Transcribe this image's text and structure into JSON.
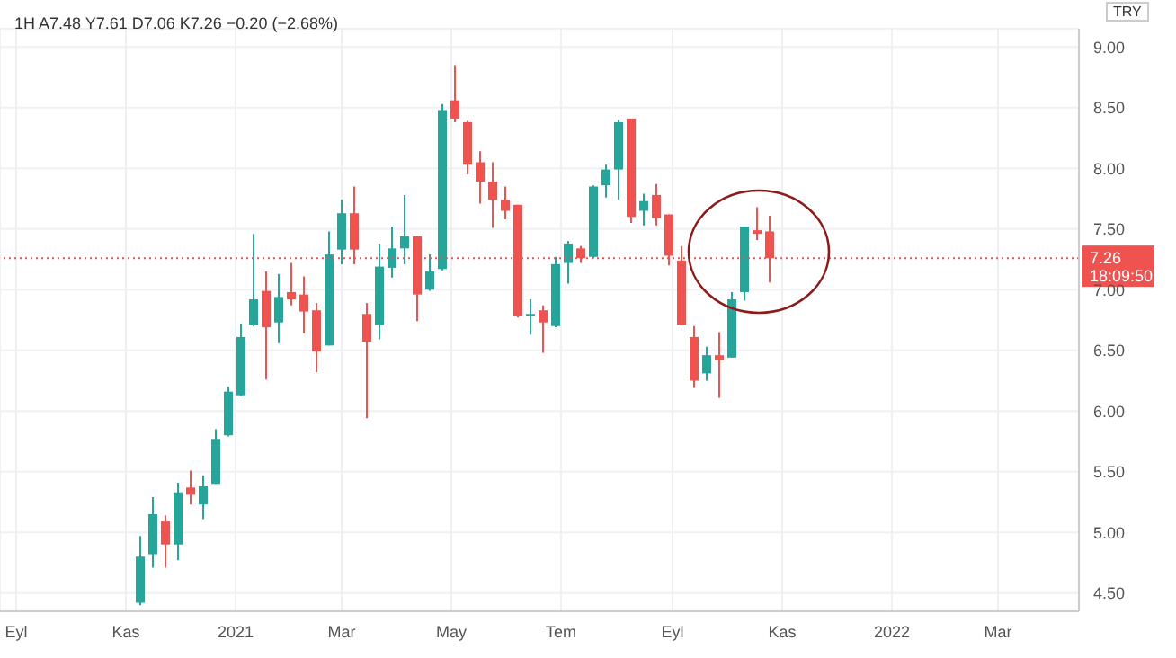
{
  "chart_data": {
    "type": "candlestick",
    "title": "1H  A7.48 Y7.61 D7.06 K7.26 −0.20 (−2.68%)",
    "x": [
      "2020-11-09",
      "2020-11-16",
      "2020-11-23",
      "2020-11-30",
      "2020-12-07",
      "2020-12-14",
      "2020-12-21",
      "2020-12-28",
      "2021-01-04",
      "2021-01-11",
      "2021-01-18",
      "2021-01-25",
      "2021-02-01",
      "2021-02-08",
      "2021-02-15",
      "2021-02-22",
      "2021-03-01",
      "2021-03-08",
      "2021-03-15",
      "2021-03-22",
      "2021-03-29",
      "2021-04-05",
      "2021-04-12",
      "2021-04-19",
      "2021-04-26",
      "2021-05-03",
      "2021-05-10",
      "2021-05-17",
      "2021-05-24",
      "2021-05-31",
      "2021-06-07",
      "2021-06-14",
      "2021-06-21",
      "2021-06-28",
      "2021-07-05",
      "2021-07-12",
      "2021-07-19",
      "2021-07-26",
      "2021-08-02",
      "2021-08-09",
      "2021-08-16",
      "2021-08-23",
      "2021-08-30",
      "2021-09-06",
      "2021-09-13",
      "2021-09-20",
      "2021-09-27",
      "2021-10-04",
      "2021-10-11",
      "2021-10-18",
      "2021-10-25"
    ],
    "ohlc": [
      [
        4.42,
        4.97,
        4.4,
        4.8
      ],
      [
        4.82,
        5.29,
        4.71,
        5.15
      ],
      [
        5.09,
        5.14,
        4.71,
        4.9
      ],
      [
        4.9,
        5.41,
        4.77,
        5.33
      ],
      [
        5.37,
        5.51,
        5.23,
        5.31
      ],
      [
        5.23,
        5.47,
        5.11,
        5.38
      ],
      [
        5.4,
        5.85,
        5.4,
        5.77
      ],
      [
        5.8,
        6.2,
        5.79,
        6.16
      ],
      [
        6.13,
        6.72,
        6.12,
        6.61
      ],
      [
        6.71,
        7.46,
        6.7,
        6.92
      ],
      [
        6.99,
        7.15,
        6.26,
        6.69
      ],
      [
        6.73,
        7.13,
        6.56,
        6.94
      ],
      [
        6.98,
        7.22,
        6.87,
        6.92
      ],
      [
        6.96,
        7.11,
        6.64,
        6.82
      ],
      [
        6.83,
        6.89,
        6.32,
        6.49
      ],
      [
        6.54,
        7.48,
        6.54,
        7.29
      ],
      [
        7.33,
        7.74,
        7.21,
        7.63
      ],
      [
        7.63,
        7.85,
        7.21,
        7.33
      ],
      [
        6.8,
        6.89,
        5.94,
        6.57
      ],
      [
        6.71,
        7.38,
        6.59,
        7.19
      ],
      [
        7.18,
        7.52,
        7.1,
        7.34
      ],
      [
        7.34,
        7.78,
        7.21,
        7.44
      ],
      [
        7.44,
        7.44,
        6.74,
        6.96
      ],
      [
        7.0,
        7.29,
        6.99,
        7.15
      ],
      [
        7.17,
        8.53,
        7.16,
        8.48
      ],
      [
        8.56,
        8.85,
        8.38,
        8.41
      ],
      [
        8.38,
        8.39,
        7.95,
        8.03
      ],
      [
        8.05,
        8.14,
        7.71,
        7.89
      ],
      [
        7.89,
        8.05,
        7.51,
        7.74
      ],
      [
        7.74,
        7.85,
        7.58,
        7.65
      ],
      [
        7.7,
        7.7,
        6.77,
        6.78
      ],
      [
        6.78,
        6.92,
        6.63,
        6.8
      ],
      [
        6.83,
        6.87,
        6.48,
        6.73
      ],
      [
        6.7,
        7.27,
        6.69,
        7.21
      ],
      [
        7.22,
        7.4,
        7.05,
        7.38
      ],
      [
        7.34,
        7.36,
        7.22,
        7.26
      ],
      [
        7.27,
        7.86,
        7.26,
        7.85
      ],
      [
        7.86,
        8.03,
        7.76,
        7.99
      ],
      [
        7.99,
        8.4,
        7.74,
        8.38
      ],
      [
        8.41,
        8.41,
        7.55,
        7.6
      ],
      [
        7.65,
        7.79,
        7.53,
        7.73
      ],
      [
        7.78,
        7.87,
        7.53,
        7.59
      ],
      [
        7.62,
        7.62,
        7.2,
        7.28
      ],
      [
        7.24,
        7.36,
        6.71,
        6.71
      ],
      [
        6.61,
        6.7,
        6.19,
        6.25
      ],
      [
        6.31,
        6.53,
        6.25,
        6.46
      ],
      [
        6.46,
        6.65,
        6.11,
        6.42
      ],
      [
        6.44,
        6.98,
        6.44,
        6.92
      ],
      [
        6.98,
        7.52,
        6.91,
        7.52
      ],
      [
        7.49,
        7.68,
        7.41,
        7.46
      ],
      [
        7.48,
        7.61,
        7.06,
        7.26
      ]
    ],
    "colors": [
      "#26a69a",
      "#26a69a",
      "#ef5350",
      "#26a69a",
      "#ef5350",
      "#26a69a",
      "#26a69a",
      "#26a69a",
      "#26a69a",
      "#26a69a",
      "#ef5350",
      "#26a69a",
      "#ef5350",
      "#ef5350",
      "#ef5350",
      "#26a69a",
      "#26a69a",
      "#ef5350",
      "#ef5350",
      "#26a69a",
      "#26a69a",
      "#26a69a",
      "#ef5350",
      "#26a69a",
      "#26a69a",
      "#ef5350",
      "#ef5350",
      "#ef5350",
      "#ef5350",
      "#ef5350",
      "#ef5350",
      "#26a69a",
      "#ef5350",
      "#26a69a",
      "#26a69a",
      "#ef5350",
      "#26a69a",
      "#26a69a",
      "#26a69a",
      "#ef5350",
      "#26a69a",
      "#ef5350",
      "#ef5350",
      "#ef5350",
      "#ef5350",
      "#26a69a",
      "#ef5350",
      "#26a69a",
      "#26a69a",
      "#ef5350",
      "#ef5350"
    ],
    "xlim": [
      "2020-08-23",
      "2022-04-15"
    ],
    "xticks": [
      {
        "value": "2020-09-01",
        "label": "Eyl"
      },
      {
        "value": "2020-11-01",
        "label": "Kas"
      },
      {
        "value": "2021-01-01",
        "label": "2021"
      },
      {
        "value": "2021-03-01",
        "label": "Mar"
      },
      {
        "value": "2021-05-01",
        "label": "May"
      },
      {
        "value": "2021-07-01",
        "label": "Tem"
      },
      {
        "value": "2021-09-01",
        "label": "Eyl"
      },
      {
        "value": "2021-11-01",
        "label": "Kas"
      },
      {
        "value": "2022-01-01",
        "label": "2022"
      },
      {
        "value": "2022-03-01",
        "label": "Mar"
      }
    ],
    "ylim": [
      4.35,
      9.15
    ],
    "yticks": [
      {
        "value": 4.5,
        "label": "4.50"
      },
      {
        "value": 5,
        "label": "5.00"
      },
      {
        "value": 5.5,
        "label": "5.50"
      },
      {
        "value": 6,
        "label": "6.00"
      },
      {
        "value": 6.5,
        "label": "6.50"
      },
      {
        "value": 7,
        "label": "7.00"
      },
      {
        "value": 7.5,
        "label": "7.50"
      },
      {
        "value": 8,
        "label": "8.00"
      },
      {
        "value": 8.5,
        "label": "8.50"
      },
      {
        "value": 9,
        "label": "9.00"
      }
    ],
    "grid": true,
    "ref_lines": [
      {
        "axis": "y",
        "value": 7.26,
        "label": "7.26",
        "color": "#ef5350",
        "line_style": "dotted"
      }
    ],
    "annotations": [
      "TRY",
      "18:09:50"
    ]
  }
}
